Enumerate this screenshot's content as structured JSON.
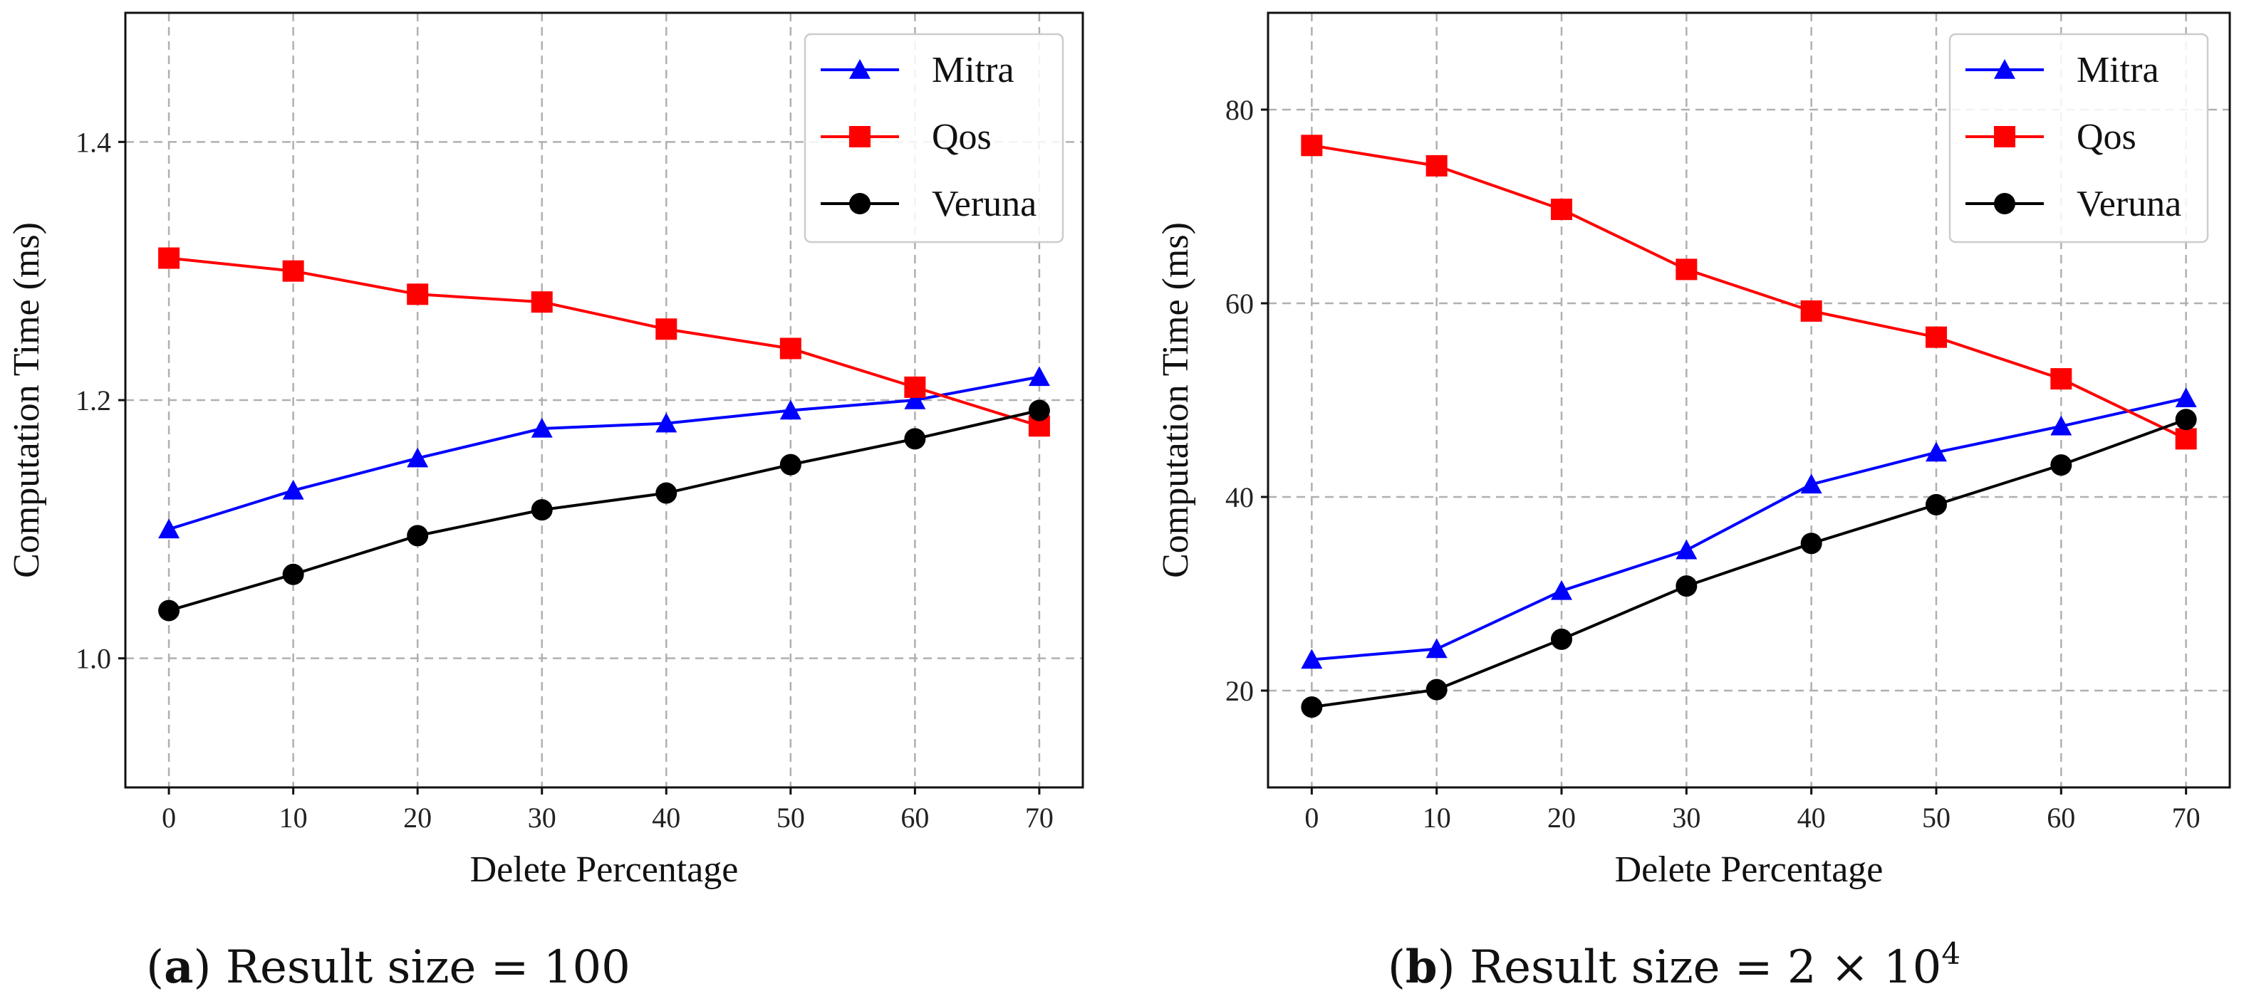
{
  "chart_data": [
    {
      "type": "line",
      "caption": {
        "letter": "a",
        "text": "Result size = 100"
      },
      "xlabel": "Delete Percentage",
      "ylabel": "Computation Time (ms)",
      "x": [
        0,
        10,
        20,
        30,
        40,
        50,
        60,
        70
      ],
      "xlim": [
        -3.5,
        73.5
      ],
      "ylim": [
        0.9,
        1.5
      ],
      "xticks": [
        0,
        10,
        20,
        30,
        40,
        50,
        60,
        70
      ],
      "yticks": [
        1.0,
        1.2,
        1.4
      ],
      "ytick_labels": [
        "1.0",
        "1.2",
        "1.4"
      ],
      "grid": true,
      "legend": "top-right",
      "series": [
        {
          "name": "Mitra",
          "color": "#0000ff",
          "marker": "triangle",
          "values": [
            1.1,
            1.13,
            1.155,
            1.178,
            1.182,
            1.192,
            1.2,
            1.218
          ]
        },
        {
          "name": "Qos",
          "color": "#ff0000",
          "marker": "square",
          "values": [
            1.31,
            1.3,
            1.282,
            1.276,
            1.255,
            1.24,
            1.21,
            1.18
          ]
        },
        {
          "name": "Veruna",
          "color": "#000000",
          "marker": "circle",
          "values": [
            1.037,
            1.065,
            1.095,
            1.115,
            1.128,
            1.15,
            1.17,
            1.192
          ]
        }
      ]
    },
    {
      "type": "line",
      "caption": {
        "letter": "b",
        "text": "Result size = 2 × 10",
        "superscript": "4"
      },
      "xlabel": "Delete Percentage",
      "ylabel": "Computation Time (ms)",
      "x": [
        0,
        10,
        20,
        30,
        40,
        50,
        60,
        70
      ],
      "xlim": [
        -3.5,
        73.5
      ],
      "ylim": [
        10,
        90
      ],
      "xticks": [
        0,
        10,
        20,
        30,
        40,
        50,
        60,
        70
      ],
      "yticks": [
        20,
        40,
        60,
        80
      ],
      "ytick_labels": [
        "20",
        "40",
        "60",
        "80"
      ],
      "grid": true,
      "legend": "top-right",
      "series": [
        {
          "name": "Mitra",
          "color": "#0000ff",
          "marker": "triangle",
          "values": [
            23.2,
            24.3,
            30.3,
            34.5,
            41.3,
            44.6,
            47.3,
            50.2
          ]
        },
        {
          "name": "Qos",
          "color": "#ff0000",
          "marker": "square",
          "values": [
            76.3,
            74.2,
            69.7,
            63.5,
            59.2,
            56.5,
            52.2,
            46.0
          ]
        },
        {
          "name": "Veruna",
          "color": "#000000",
          "marker": "circle",
          "values": [
            18.3,
            20.1,
            25.3,
            30.8,
            35.2,
            39.2,
            43.3,
            48.0
          ]
        }
      ]
    }
  ]
}
